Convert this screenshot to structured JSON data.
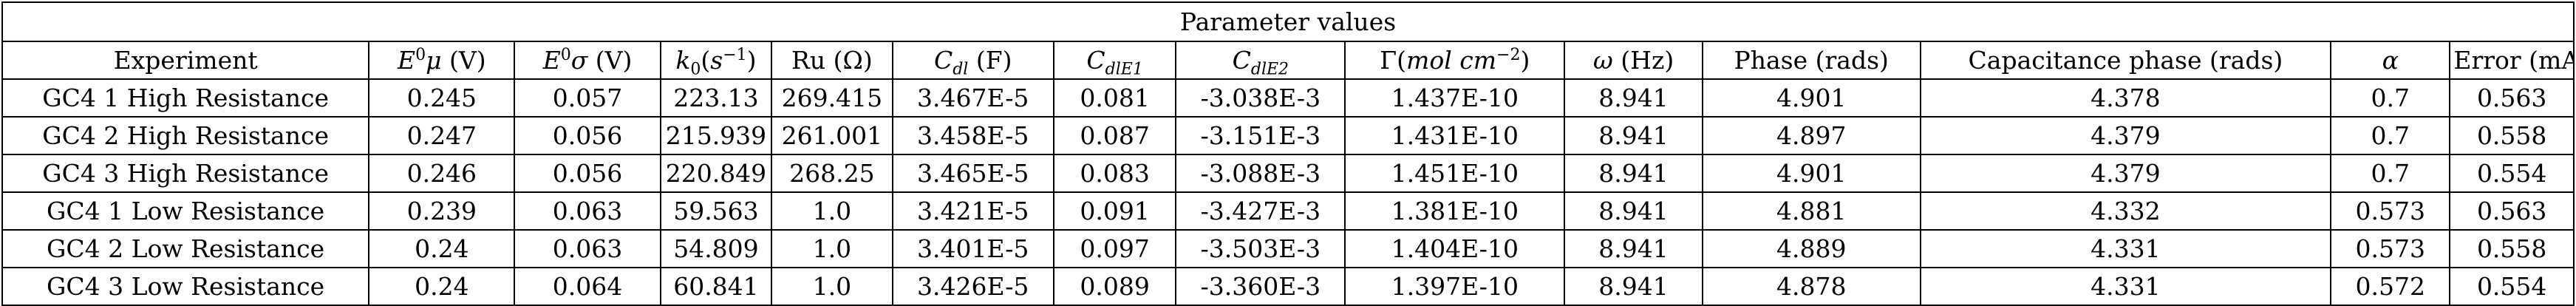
{
  "table": {
    "title": "Parameter values",
    "headers": {
      "experiment": "Experiment",
      "e0mu": {
        "sym": "E",
        "sup": "0",
        "var": "μ",
        "unit": " (V)"
      },
      "e0sigma": {
        "sym": "E",
        "sup": "0",
        "var": "σ",
        "unit": " (V)"
      },
      "k0": {
        "sym": "k",
        "sub": "0",
        "unit_pre": "(",
        "unit_var": "s",
        "unit_sup": "−1",
        "unit_post": ")"
      },
      "ru": "Ru (Ω)",
      "cdl": {
        "sym": "C",
        "sub": "dl",
        "unit": " (F)"
      },
      "cdle1": {
        "sym": "C",
        "sub": "dlE1"
      },
      "cdle2": {
        "sym": "C",
        "sub": "dlE2"
      },
      "gamma": {
        "sym": "Γ",
        "unit_pre": "(",
        "unit_var": "mol cm",
        "unit_sup": "−2",
        "unit_post": ")"
      },
      "omega": {
        "sym": "ω",
        "unit": " (Hz)"
      },
      "phase": "Phase (rads)",
      "cap_phase": "Capacitance phase (rads)",
      "alpha": "α",
      "error": "Error (mA)"
    },
    "rows": [
      [
        "GC4 1 High Resistance",
        "0.245",
        "0.057",
        "223.13",
        "269.415",
        "3.467E-5",
        "0.081",
        "-3.038E-3",
        "1.437E-10",
        "8.941",
        "4.901",
        "4.378",
        "0.7",
        "0.563"
      ],
      [
        "GC4 2 High Resistance",
        "0.247",
        "0.056",
        "215.939",
        "261.001",
        "3.458E-5",
        "0.087",
        "-3.151E-3",
        "1.431E-10",
        "8.941",
        "4.897",
        "4.379",
        "0.7",
        "0.558"
      ],
      [
        "GC4 3 High Resistance",
        "0.246",
        "0.056",
        "220.849",
        "268.25",
        "3.465E-5",
        "0.083",
        "-3.088E-3",
        "1.451E-10",
        "8.941",
        "4.901",
        "4.379",
        "0.7",
        "0.554"
      ],
      [
        "GC4 1 Low Resistance",
        "0.239",
        "0.063",
        "59.563",
        "1.0",
        "3.421E-5",
        "0.091",
        "-3.427E-3",
        "1.381E-10",
        "8.941",
        "4.881",
        "4.332",
        "0.573",
        "0.563"
      ],
      [
        "GC4 2 Low Resistance",
        "0.24",
        "0.063",
        "54.809",
        "1.0",
        "3.401E-5",
        "0.097",
        "-3.503E-3",
        "1.404E-10",
        "8.941",
        "4.889",
        "4.331",
        "0.573",
        "0.558"
      ],
      [
        "GC4 3 Low Resistance",
        "0.24",
        "0.064",
        "60.841",
        "1.0",
        "3.426E-5",
        "0.089",
        "-3.360E-3",
        "1.397E-10",
        "8.941",
        "4.878",
        "4.331",
        "0.572",
        "0.554"
      ]
    ]
  }
}
